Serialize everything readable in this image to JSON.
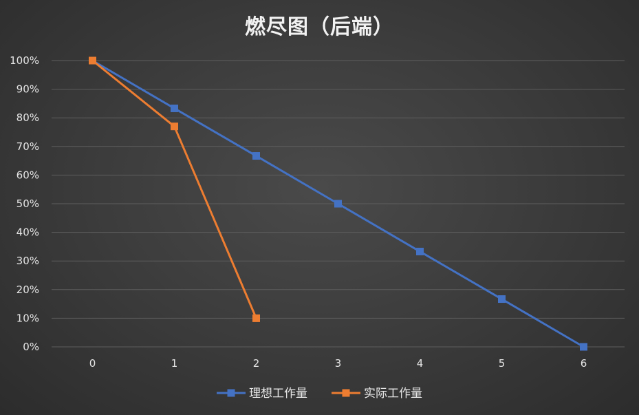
{
  "chart_data": {
    "type": "line",
    "title": "燃尽图（后端）",
    "xlabel": "",
    "ylabel": "",
    "x": [
      0,
      1,
      2,
      3,
      4,
      5,
      6
    ],
    "x_tick_labels": [
      "0",
      "1",
      "2",
      "3",
      "4",
      "5",
      "6"
    ],
    "y_tick_labels": [
      "0%",
      "10%",
      "20%",
      "30%",
      "40%",
      "50%",
      "60%",
      "70%",
      "80%",
      "90%",
      "100%"
    ],
    "ylim": [
      0,
      100
    ],
    "grid": true,
    "legend_position": "bottom",
    "series": [
      {
        "name": "理想工作量",
        "color": "#4472c4",
        "marker": "square",
        "x": [
          0,
          1,
          2,
          3,
          4,
          5,
          6
        ],
        "values": [
          100,
          83.3,
          66.7,
          50,
          33.3,
          16.7,
          0
        ]
      },
      {
        "name": "实际工作量",
        "color": "#ed7d31",
        "marker": "square",
        "x": [
          0,
          1,
          2
        ],
        "values": [
          100,
          77,
          10
        ]
      }
    ]
  }
}
